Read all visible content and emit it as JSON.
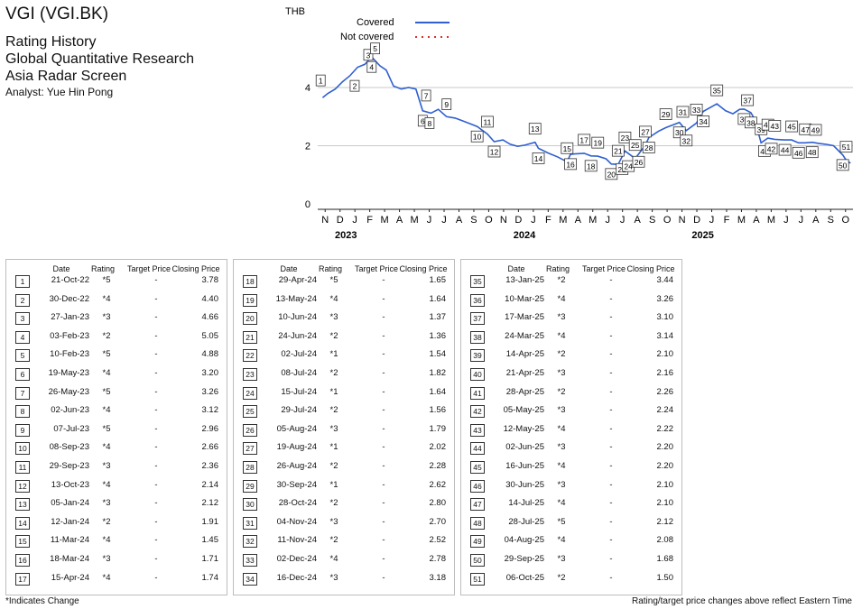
{
  "header": {
    "title": "VGI (VGI.BK)",
    "subtitle1": "Rating History",
    "subtitle2": "Global Quantitative Research",
    "subtitle3": "Asia Radar Screen",
    "analyst": "Analyst: Yue Hin Pong"
  },
  "table_headers": {
    "date": "Date",
    "rating": "Rating",
    "target": "Target Price",
    "close": "Closing Price"
  },
  "ratings": [
    {
      "n": "1",
      "date": "21-Oct-22",
      "rating": "*5",
      "target": "-",
      "close": "3.78"
    },
    {
      "n": "2",
      "date": "30-Dec-22",
      "rating": "*4",
      "target": "-",
      "close": "4.40"
    },
    {
      "n": "3",
      "date": "27-Jan-23",
      "rating": "*3",
      "target": "-",
      "close": "4.66"
    },
    {
      "n": "4",
      "date": "03-Feb-23",
      "rating": "*2",
      "target": "-",
      "close": "5.05"
    },
    {
      "n": "5",
      "date": "10-Feb-23",
      "rating": "*5",
      "target": "-",
      "close": "4.88"
    },
    {
      "n": "6",
      "date": "19-May-23",
      "rating": "*4",
      "target": "-",
      "close": "3.20"
    },
    {
      "n": "7",
      "date": "26-May-23",
      "rating": "*5",
      "target": "-",
      "close": "3.26"
    },
    {
      "n": "8",
      "date": "02-Jun-23",
      "rating": "*4",
      "target": "-",
      "close": "3.12"
    },
    {
      "n": "9",
      "date": "07-Jul-23",
      "rating": "*5",
      "target": "-",
      "close": "2.96"
    },
    {
      "n": "10",
      "date": "08-Sep-23",
      "rating": "*4",
      "target": "-",
      "close": "2.66"
    },
    {
      "n": "11",
      "date": "29-Sep-23",
      "rating": "*3",
      "target": "-",
      "close": "2.36"
    },
    {
      "n": "12",
      "date": "13-Oct-23",
      "rating": "*4",
      "target": "-",
      "close": "2.14"
    },
    {
      "n": "13",
      "date": "05-Jan-24",
      "rating": "*3",
      "target": "-",
      "close": "2.12"
    },
    {
      "n": "14",
      "date": "12-Jan-24",
      "rating": "*2",
      "target": "-",
      "close": "1.91"
    },
    {
      "n": "15",
      "date": "11-Mar-24",
      "rating": "*4",
      "target": "-",
      "close": "1.45"
    },
    {
      "n": "16",
      "date": "18-Mar-24",
      "rating": "*3",
      "target": "-",
      "close": "1.71"
    },
    {
      "n": "17",
      "date": "15-Apr-24",
      "rating": "*4",
      "target": "-",
      "close": "1.74"
    },
    {
      "n": "18",
      "date": "29-Apr-24",
      "rating": "*5",
      "target": "-",
      "close": "1.65"
    },
    {
      "n": "19",
      "date": "13-May-24",
      "rating": "*4",
      "target": "-",
      "close": "1.64"
    },
    {
      "n": "20",
      "date": "10-Jun-24",
      "rating": "*3",
      "target": "-",
      "close": "1.37"
    },
    {
      "n": "21",
      "date": "24-Jun-24",
      "rating": "*2",
      "target": "-",
      "close": "1.36"
    },
    {
      "n": "22",
      "date": "02-Jul-24",
      "rating": "*1",
      "target": "-",
      "close": "1.54"
    },
    {
      "n": "23",
      "date": "08-Jul-24",
      "rating": "*2",
      "target": "-",
      "close": "1.82"
    },
    {
      "n": "24",
      "date": "15-Jul-24",
      "rating": "*1",
      "target": "-",
      "close": "1.64"
    },
    {
      "n": "25",
      "date": "29-Jul-24",
      "rating": "*2",
      "target": "-",
      "close": "1.56"
    },
    {
      "n": "26",
      "date": "05-Aug-24",
      "rating": "*3",
      "target": "-",
      "close": "1.79"
    },
    {
      "n": "27",
      "date": "19-Aug-24",
      "rating": "*1",
      "target": "-",
      "close": "2.02"
    },
    {
      "n": "28",
      "date": "26-Aug-24",
      "rating": "*2",
      "target": "-",
      "close": "2.28"
    },
    {
      "n": "29",
      "date": "30-Sep-24",
      "rating": "*1",
      "target": "-",
      "close": "2.62"
    },
    {
      "n": "30",
      "date": "28-Oct-24",
      "rating": "*2",
      "target": "-",
      "close": "2.80"
    },
    {
      "n": "31",
      "date": "04-Nov-24",
      "rating": "*3",
      "target": "-",
      "close": "2.70"
    },
    {
      "n": "32",
      "date": "11-Nov-24",
      "rating": "*2",
      "target": "-",
      "close": "2.52"
    },
    {
      "n": "33",
      "date": "02-Dec-24",
      "rating": "*4",
      "target": "-",
      "close": "2.78"
    },
    {
      "n": "34",
      "date": "16-Dec-24",
      "rating": "*3",
      "target": "-",
      "close": "3.18"
    },
    {
      "n": "35",
      "date": "13-Jan-25",
      "rating": "*2",
      "target": "-",
      "close": "3.44"
    },
    {
      "n": "36",
      "date": "10-Mar-25",
      "rating": "*4",
      "target": "-",
      "close": "3.26"
    },
    {
      "n": "37",
      "date": "17-Mar-25",
      "rating": "*3",
      "target": "-",
      "close": "3.10"
    },
    {
      "n": "38",
      "date": "24-Mar-25",
      "rating": "*4",
      "target": "-",
      "close": "3.14"
    },
    {
      "n": "39",
      "date": "14-Apr-25",
      "rating": "*2",
      "target": "-",
      "close": "2.10"
    },
    {
      "n": "40",
      "date": "21-Apr-25",
      "rating": "*3",
      "target": "-",
      "close": "2.16"
    },
    {
      "n": "41",
      "date": "28-Apr-25",
      "rating": "*2",
      "target": "-",
      "close": "2.26"
    },
    {
      "n": "42",
      "date": "05-May-25",
      "rating": "*3",
      "target": "-",
      "close": "2.24"
    },
    {
      "n": "43",
      "date": "12-May-25",
      "rating": "*4",
      "target": "-",
      "close": "2.22"
    },
    {
      "n": "44",
      "date": "02-Jun-25",
      "rating": "*3",
      "target": "-",
      "close": "2.20"
    },
    {
      "n": "45",
      "date": "16-Jun-25",
      "rating": "*4",
      "target": "-",
      "close": "2.20"
    },
    {
      "n": "46",
      "date": "30-Jun-25",
      "rating": "*3",
      "target": "-",
      "close": "2.10"
    },
    {
      "n": "47",
      "date": "14-Jul-25",
      "rating": "*4",
      "target": "-",
      "close": "2.10"
    },
    {
      "n": "48",
      "date": "28-Jul-25",
      "rating": "*5",
      "target": "-",
      "close": "2.12"
    },
    {
      "n": "49",
      "date": "04-Aug-25",
      "rating": "*4",
      "target": "-",
      "close": "2.08"
    },
    {
      "n": "50",
      "date": "29-Sep-25",
      "rating": "*3",
      "target": "-",
      "close": "1.68"
    },
    {
      "n": "51",
      "date": "06-Oct-25",
      "rating": "*2",
      "target": "-",
      "close": "1.50"
    }
  ],
  "footer": {
    "left": "*Indicates Change",
    "right": "Rating/target price changes above reflect Eastern Time"
  },
  "chart_data": {
    "type": "line",
    "ylabel": "THB",
    "ylim": [
      0,
      6
    ],
    "yticks": [
      "0",
      "2",
      "4"
    ],
    "x_months": [
      "N",
      "D",
      "J",
      "F",
      "M",
      "A",
      "M",
      "J",
      "J",
      "A",
      "S",
      "O",
      "N",
      "D",
      "J",
      "F",
      "M",
      "A",
      "M",
      "J",
      "J",
      "A",
      "S",
      "O",
      "N",
      "D",
      "J",
      "F",
      "M",
      "A",
      "M",
      "J",
      "J",
      "A",
      "S",
      "O"
    ],
    "x_years": [
      "2023",
      "2024",
      "2025"
    ],
    "grid": "horizontal",
    "legend": [
      "Covered",
      "Not covered"
    ],
    "legend_position": "top",
    "line_color": "#2f5fd0",
    "not_covered_color": "#d9312b",
    "series": [
      {
        "name": "Covered",
        "x": [
          "2022-10-25",
          "2022-11-05",
          "2022-11-20",
          "2022-12-05",
          "2022-12-20",
          "2023-01-05",
          "2023-01-20",
          "2023-02-03",
          "2023-02-20",
          "2023-03-05",
          "2023-03-20",
          "2023-04-05",
          "2023-04-20",
          "2023-05-05",
          "2023-05-19",
          "2023-06-05",
          "2023-06-20",
          "2023-07-07",
          "2023-07-25",
          "2023-08-10",
          "2023-08-25",
          "2023-09-08",
          "2023-09-29",
          "2023-10-13",
          "2023-10-31",
          "2023-11-15",
          "2023-11-30",
          "2023-12-15",
          "2024-01-05",
          "2024-01-12",
          "2024-02-01",
          "2024-02-20",
          "2024-03-11",
          "2024-03-18",
          "2024-04-15",
          "2024-04-29",
          "2024-05-13",
          "2024-05-30",
          "2024-06-10",
          "2024-06-24",
          "2024-07-08",
          "2024-07-29",
          "2024-08-19",
          "2024-08-26",
          "2024-09-15",
          "2024-09-30",
          "2024-10-28",
          "2024-11-11",
          "2024-12-02",
          "2024-12-16",
          "2025-01-13",
          "2025-01-31",
          "2025-02-15",
          "2025-03-01",
          "2025-03-10",
          "2025-03-24",
          "2025-04-01",
          "2025-04-14",
          "2025-04-28",
          "2025-05-12",
          "2025-05-31",
          "2025-06-16",
          "2025-06-30",
          "2025-07-14",
          "2025-07-28",
          "2025-08-10",
          "2025-08-25",
          "2025-09-10",
          "2025-09-29",
          "2025-10-06",
          "2025-10-15"
        ],
        "values": [
          3.65,
          3.8,
          3.95,
          4.2,
          4.4,
          4.7,
          4.8,
          5.05,
          4.75,
          4.6,
          4.05,
          3.95,
          4.0,
          3.95,
          3.2,
          3.12,
          3.25,
          3.0,
          2.95,
          2.85,
          2.75,
          2.66,
          2.4,
          2.14,
          2.2,
          2.05,
          1.98,
          2.02,
          2.12,
          1.91,
          1.75,
          1.62,
          1.45,
          1.71,
          1.74,
          1.65,
          1.64,
          1.55,
          1.37,
          1.36,
          1.82,
          1.56,
          2.02,
          2.28,
          2.5,
          2.62,
          2.8,
          2.52,
          2.78,
          3.18,
          3.44,
          3.2,
          3.1,
          3.25,
          3.26,
          3.14,
          2.9,
          2.1,
          2.26,
          2.22,
          2.2,
          2.2,
          2.1,
          2.1,
          2.12,
          2.08,
          2.05,
          2.0,
          1.68,
          1.5,
          1.4
        ]
      }
    ]
  }
}
